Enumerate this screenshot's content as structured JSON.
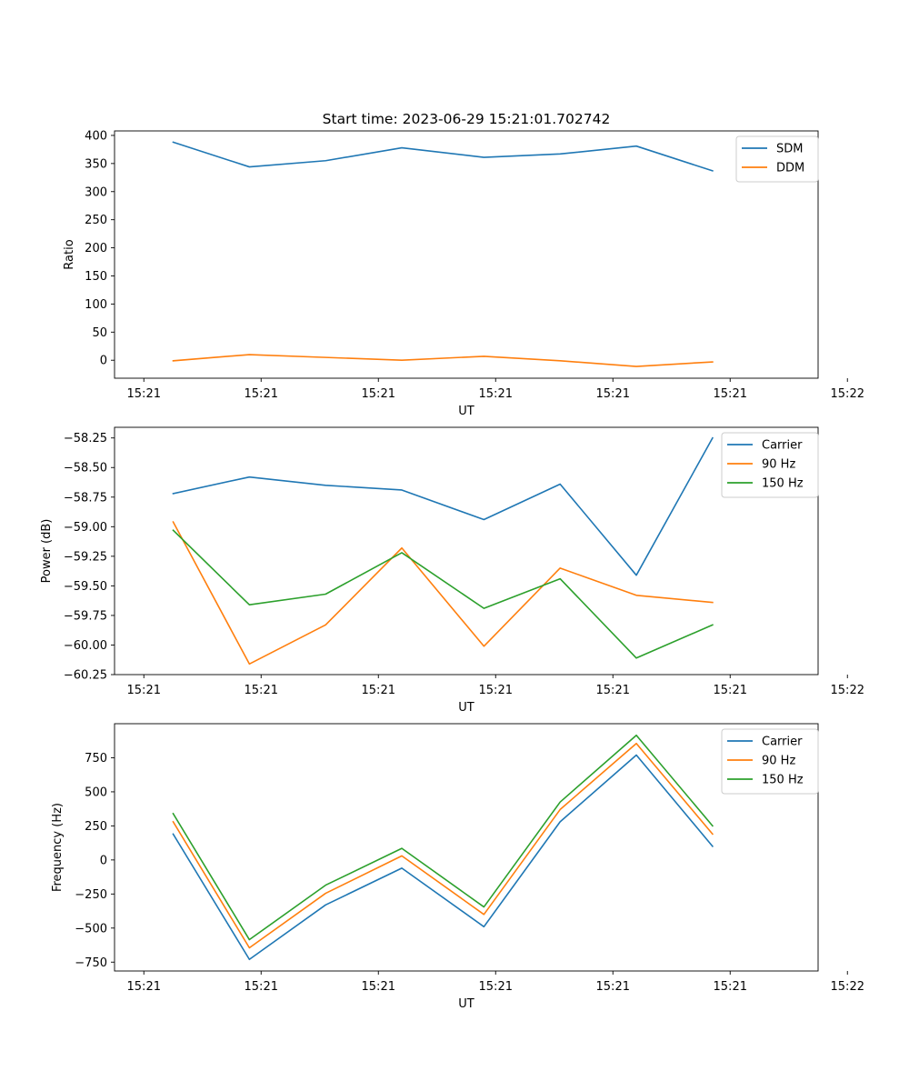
{
  "figure": {
    "title": "Start time: 2023-06-29 15:21:01.702742"
  },
  "chart_data": [
    {
      "type": "line",
      "title": "Start time: 2023-06-29 15:21:01.702742",
      "xlabel": "UT",
      "ylabel": "Ratio",
      "x_tick_labels": [
        "15:21",
        "15:21",
        "15:21",
        "15:21",
        "15:21",
        "15:21",
        "15:22"
      ],
      "y_ticks": [
        0,
        50,
        100,
        150,
        200,
        250,
        300,
        350,
        400
      ],
      "ylim": [
        -32,
        408
      ],
      "x": [
        0.5,
        1.15,
        1.8,
        2.45,
        3.15,
        3.8,
        4.45,
        5.1
      ],
      "xlim": [
        0,
        6
      ],
      "series": [
        {
          "name": "SDM",
          "color": "#1f77b4",
          "values": [
            388,
            344,
            355,
            378,
            361,
            367,
            381,
            337
          ]
        },
        {
          "name": "DDM",
          "color": "#ff7f0e",
          "values": [
            -1,
            10,
            5,
            0,
            7,
            -1,
            -11,
            -3
          ]
        }
      ],
      "legend": "top-right",
      "grid": false
    },
    {
      "type": "line",
      "xlabel": "UT",
      "ylabel": "Power (dB)",
      "x_tick_labels": [
        "15:21",
        "15:21",
        "15:21",
        "15:21",
        "15:21",
        "15:21",
        "15:22"
      ],
      "y_ticks": [
        -60.25,
        -60.0,
        -59.75,
        -59.5,
        -59.25,
        -59.0,
        -58.75,
        -58.5,
        -58.25
      ],
      "y_tick_labels": [
        "−60.25",
        "−60.00",
        "−59.75",
        "−59.50",
        "−59.25",
        "−59.00",
        "−58.75",
        "−58.50",
        "−58.25"
      ],
      "ylim": [
        -60.25,
        -58.16
      ],
      "x": [
        0.5,
        1.15,
        1.8,
        2.45,
        3.15,
        3.8,
        4.45,
        5.1
      ],
      "xlim": [
        0,
        6
      ],
      "series": [
        {
          "name": "Carrier",
          "color": "#1f77b4",
          "values": [
            -58.72,
            -58.58,
            -58.65,
            -58.69,
            -58.94,
            -58.64,
            -59.41,
            -58.25
          ]
        },
        {
          "name": "90 Hz",
          "color": "#ff7f0e",
          "values": [
            -58.96,
            -60.16,
            -59.83,
            -59.18,
            -60.01,
            -59.35,
            -59.58,
            -59.64
          ]
        },
        {
          "name": "150 Hz",
          "color": "#2ca02c",
          "values": [
            -59.03,
            -59.66,
            -59.57,
            -59.22,
            -59.69,
            -59.44,
            -60.11,
            -59.83
          ]
        }
      ],
      "legend": "top-right",
      "grid": false
    },
    {
      "type": "line",
      "xlabel": "UT",
      "ylabel": "Frequency (Hz)",
      "x_tick_labels": [
        "15:21",
        "15:21",
        "15:21",
        "15:21",
        "15:21",
        "15:21",
        "15:22"
      ],
      "y_ticks": [
        -750,
        -500,
        -250,
        0,
        250,
        500,
        750
      ],
      "y_tick_labels": [
        "−750",
        "−500",
        "−250",
        "0",
        "250",
        "500",
        "750"
      ],
      "ylim": [
        -815,
        1000
      ],
      "x": [
        0.5,
        1.15,
        1.8,
        2.45,
        3.15,
        3.8,
        4.45,
        5.1
      ],
      "xlim": [
        0,
        6
      ],
      "series": [
        {
          "name": "Carrier",
          "color": "#1f77b4",
          "values": [
            190,
            -730,
            -330,
            -60,
            -490,
            280,
            770,
            100
          ]
        },
        {
          "name": "90 Hz",
          "color": "#ff7f0e",
          "values": [
            280,
            -645,
            -245,
            30,
            -400,
            370,
            855,
            190
          ]
        },
        {
          "name": "150 Hz",
          "color": "#2ca02c",
          "values": [
            340,
            -585,
            -185,
            85,
            -345,
            425,
            915,
            250
          ]
        }
      ],
      "legend": "top-right",
      "grid": false
    }
  ]
}
